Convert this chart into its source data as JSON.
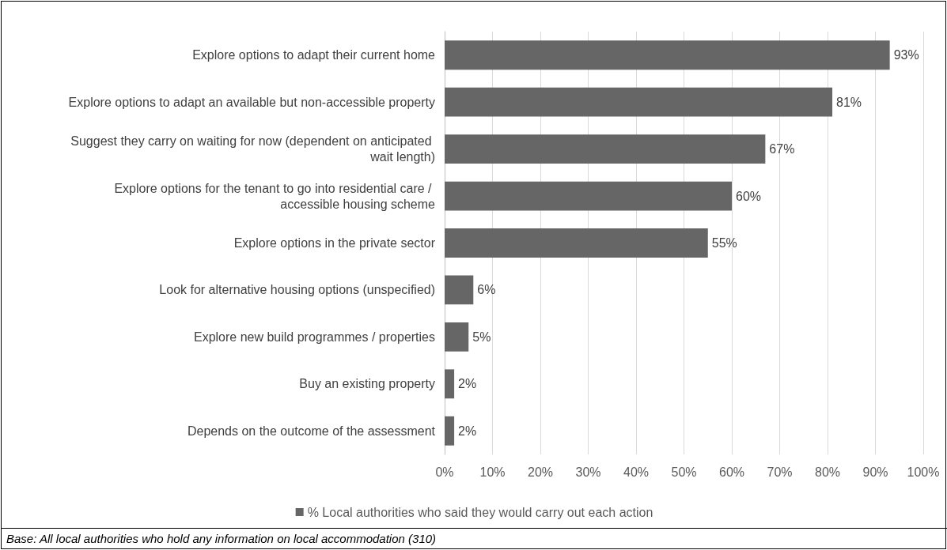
{
  "chart_data": {
    "type": "bar",
    "orientation": "horizontal",
    "categories": [
      "Explore options to adapt their current home",
      "Explore options to adapt an available but non-accessible property",
      "Suggest they carry on waiting for now (dependent on anticipated wait length)",
      "Explore options for the tenant to go into residential care / accessible housing scheme",
      "Explore options in the private sector",
      "Look for alternative housing options (unspecified)",
      "Explore new build programmes / properties",
      "Buy an existing property",
      "Depends on the outcome of the assessment"
    ],
    "series": [
      {
        "name": "% Local authorities who said they would carry out each action",
        "color": "#666666",
        "values": [
          93,
          81,
          67,
          60,
          55,
          6,
          5,
          2,
          2
        ],
        "value_labels": [
          "93%",
          "81%",
          "67%",
          "60%",
          "55%",
          "6%",
          "5%",
          "2%",
          "2%"
        ]
      }
    ],
    "xlim": [
      0,
      100
    ],
    "xticks": [
      {
        "value": 0,
        "label": "0%"
      },
      {
        "value": 10,
        "label": "10%"
      },
      {
        "value": 20,
        "label": "20%"
      },
      {
        "value": 30,
        "label": "30%"
      },
      {
        "value": 40,
        "label": "40%"
      },
      {
        "value": 50,
        "label": "50%"
      },
      {
        "value": 60,
        "label": "60%"
      },
      {
        "value": 70,
        "label": "70%"
      },
      {
        "value": 80,
        "label": "80%"
      },
      {
        "value": 90,
        "label": "90%"
      },
      {
        "value": 100,
        "label": "100%"
      }
    ],
    "grid": "x",
    "legend": "bottom",
    "annotations": [
      "Base: All local authorities who hold any information on local accommodation (310)"
    ]
  }
}
